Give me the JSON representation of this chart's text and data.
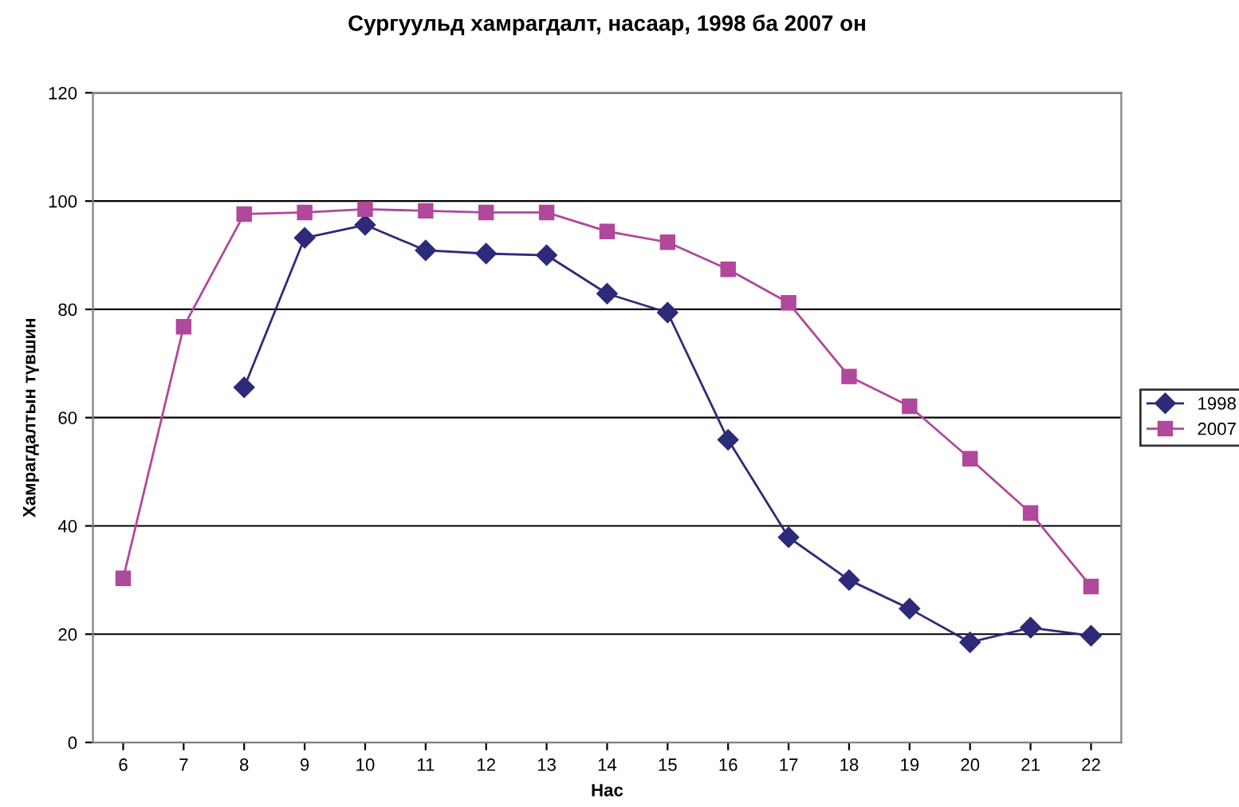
{
  "chart_data": {
    "type": "line",
    "title": "Сургуульд хамрагдалт, насаар, 1998 ба 2007 он",
    "xlabel": "Нас",
    "ylabel": "Хамрагдалтын түвшин",
    "categories": [
      "6",
      "7",
      "8",
      "9",
      "10",
      "11",
      "12",
      "13",
      "14",
      "15",
      "16",
      "17",
      "18",
      "19",
      "20",
      "21",
      "22"
    ],
    "series": [
      {
        "name": "1998",
        "color": "#2e2a7a",
        "marker": "diamond",
        "values": [
          null,
          null,
          65.6,
          93.2,
          95.6,
          90.9,
          90.3,
          90.0,
          82.9,
          79.4,
          55.9,
          37.9,
          30.0,
          24.7,
          18.5,
          21.2,
          19.7
        ]
      },
      {
        "name": "2007",
        "color": "#b0489c",
        "marker": "square",
        "values": [
          30.3,
          76.8,
          97.6,
          97.9,
          98.5,
          98.2,
          97.9,
          97.9,
          94.4,
          92.4,
          87.4,
          81.2,
          67.6,
          62.1,
          52.4,
          42.4,
          28.8
        ]
      }
    ],
    "ylim": [
      0,
      120
    ],
    "yticks": [
      0,
      20,
      40,
      60,
      80,
      100,
      120
    ],
    "grid": "y",
    "legend": "right",
    "line_style": "solid"
  }
}
